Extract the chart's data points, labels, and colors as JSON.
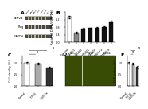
{
  "panel_B": {
    "categories": [
      "Control",
      "DENV1",
      "DENV2",
      "DENV3",
      "DENV4",
      "DENV1+2",
      "DENV1-4"
    ],
    "values": [
      1.35,
      0.52,
      0.72,
      0.75,
      0.78,
      0.8,
      1.08
    ],
    "errors": [
      0.06,
      0.04,
      0.04,
      0.04,
      0.05,
      0.05,
      0.07
    ],
    "colors": [
      "#ffffff",
      "#888888",
      "#111111",
      "#111111",
      "#111111",
      "#111111",
      "#111111"
    ],
    "ylabel": "Ratio of DENV/GAPDH",
    "ylim": [
      0,
      1.6
    ],
    "yticks": [
      0.0,
      0.4,
      0.8,
      1.2,
      1.6
    ]
  },
  "panel_C": {
    "categories": [
      "Control",
      "IFITb1",
      "1-5000x"
    ],
    "values": [
      1.0,
      0.97,
      0.8
    ],
    "errors": [
      0.04,
      0.04,
      0.04
    ],
    "colors": [
      "#ffffff",
      "#aaaaaa",
      "#333333"
    ],
    "ylabel": "Cell viability (%)",
    "ylim": [
      0,
      1.3
    ],
    "yticks": [
      0.0,
      0.5,
      1.0
    ]
  },
  "panel_E": {
    "categories": [
      "Control",
      "IFITb1",
      "1-5000x"
    ],
    "values": [
      1.0,
      0.96,
      0.82
    ],
    "errors": [
      0.04,
      0.04,
      0.05
    ],
    "colors": [
      "#ffffff",
      "#aaaaaa",
      "#333333"
    ],
    "ylabel": "GFP positive (%)",
    "ylim": [
      0,
      1.3
    ],
    "yticks": [
      0.0,
      0.5,
      1.0
    ]
  },
  "panel_A": {
    "row_labels": [
      "DENV-1",
      "Flag",
      "GAPDH"
    ],
    "n_lanes": 8,
    "bg_color": "#c8c5a8",
    "band_color": "#3a3a3a",
    "row_bg_color": "#b5b29a"
  },
  "panel_D": {
    "labels": [
      "Control",
      "IFITb1",
      "1-5000x"
    ],
    "bg_color_rgb": [
      0.22,
      0.3,
      0.02
    ],
    "bright_color_rgb": [
      0.6,
      0.75,
      0.05
    ]
  },
  "background_color": "#ffffff",
  "label_fontsize": 3.2,
  "tick_fontsize": 2.5,
  "panel_label_fontsize": 4.5,
  "bar_edgecolor": "#000000",
  "bar_linewidth": 0.3,
  "errorbar_linewidth": 0.35,
  "errorbar_capsize": 0.7
}
